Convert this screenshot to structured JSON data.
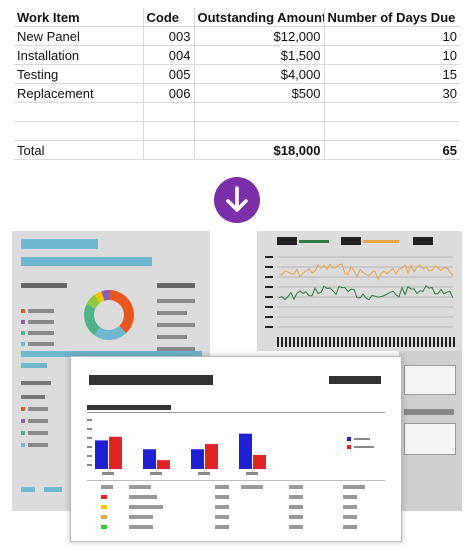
{
  "table": {
    "headers": [
      "Work Item",
      "Code",
      "Outstanding Amount",
      "Number of Days Due"
    ],
    "rows": [
      [
        "New Panel",
        "003",
        "$12,000",
        "10"
      ],
      [
        "Installation",
        "004",
        "$1,500",
        "10"
      ],
      [
        "Testing",
        "005",
        "$4,000",
        "15"
      ],
      [
        "Replacement",
        "006",
        "$500",
        "30"
      ]
    ],
    "total": {
      "label": "Total",
      "amount": "$18,000",
      "days": "65"
    }
  },
  "arrow": {
    "icon": "arrow-down-icon",
    "color": "#7b2fa8"
  },
  "illustration": {
    "colors": {
      "blue": "#1f1fd6",
      "red": "#e02424",
      "teal": "#6fb6cf",
      "orange": "#e8a44a",
      "green": "#2f7a3f"
    },
    "bar_chart": {
      "groups": [
        {
          "blue": 0.55,
          "red": 0.62
        },
        {
          "blue": 0.38,
          "red": 0.17
        },
        {
          "blue": 0.38,
          "red": 0.48
        },
        {
          "blue": 0.68,
          "red": 0.27
        }
      ]
    },
    "donut": {
      "segments": [
        {
          "color": "#e8561f",
          "share": 0.38
        },
        {
          "color": "#6fb6cf",
          "share": 0.22
        },
        {
          "color": "#4db38a",
          "share": 0.22
        },
        {
          "color": "#8dc63f",
          "share": 0.08
        },
        {
          "color": "#f2c300",
          "share": 0.05
        },
        {
          "color": "#8b5bb5",
          "share": 0.05
        }
      ]
    }
  }
}
